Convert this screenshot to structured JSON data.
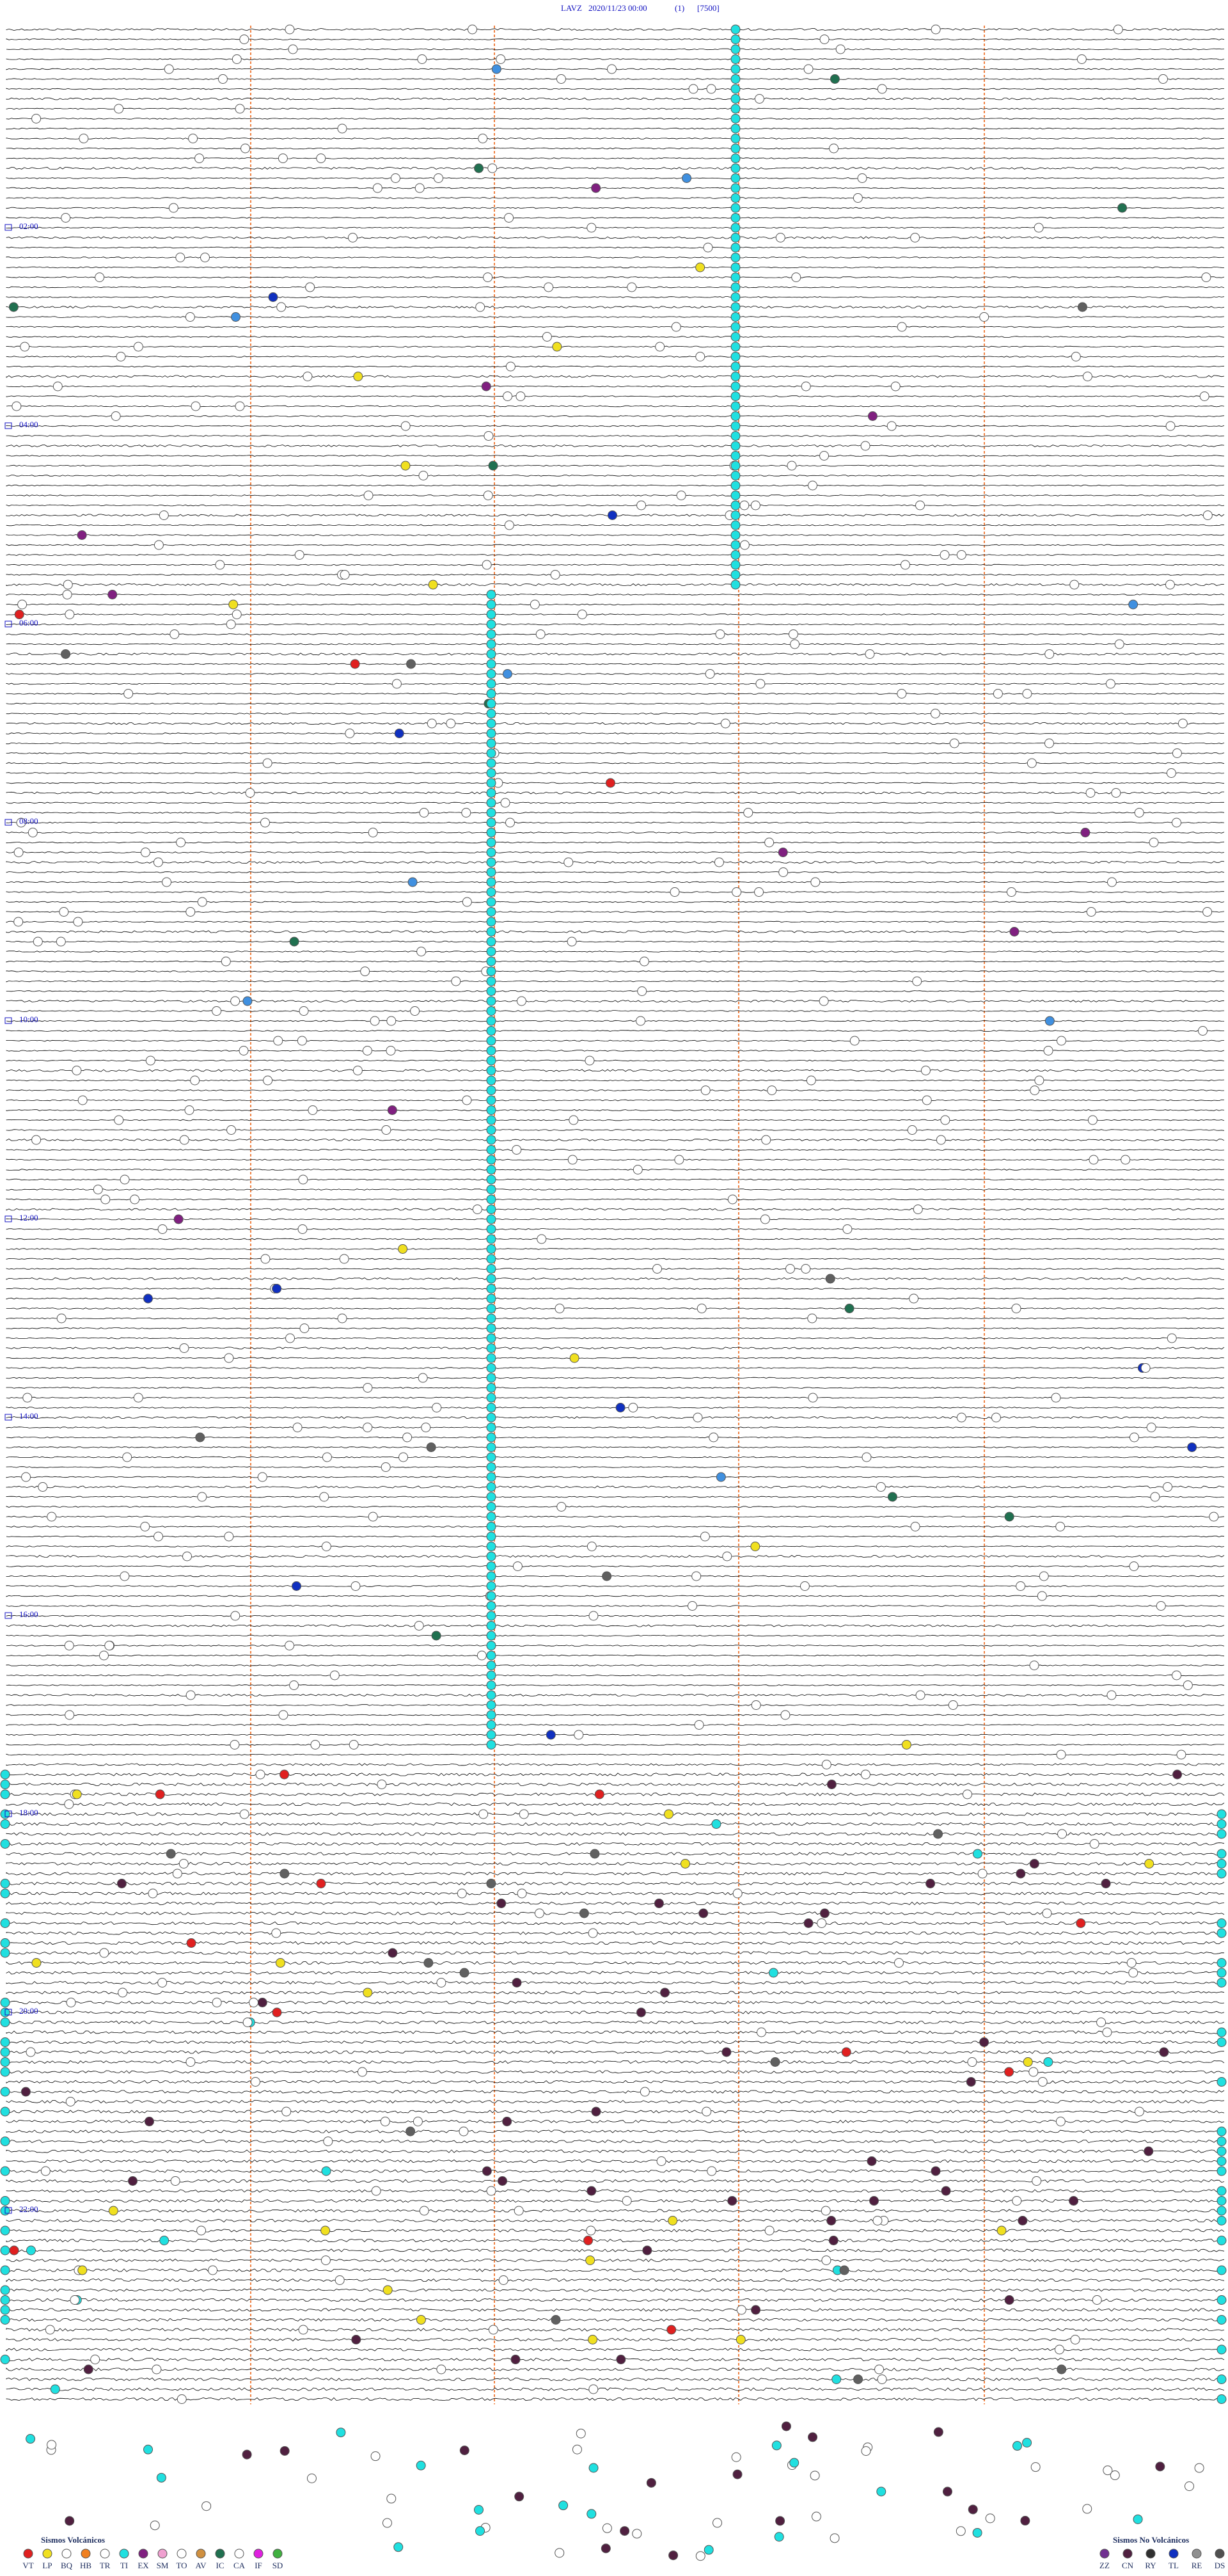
{
  "header": {
    "station": "LAVZ",
    "datetime": "2020/11/23 00:00",
    "channel": "(1)",
    "scale": "[7500]"
  },
  "hour_labels": [
    "02:00",
    "04:00",
    "06:00",
    "08:00",
    "10:00",
    "12:00",
    "14:00",
    "16:00",
    "18:00",
    "20:00",
    "22:00"
  ],
  "legend_volcanic": {
    "title": "Sismos Volcánicos",
    "items": [
      {
        "code": "VT",
        "color": "#e02020"
      },
      {
        "code": "LP",
        "color": "#f0e020"
      },
      {
        "code": "BQ",
        "color": "#ffffff"
      },
      {
        "code": "HB",
        "color": "#f08020"
      },
      {
        "code": "TR",
        "color": "#ffffff"
      },
      {
        "code": "TI",
        "color": "#20e0e0"
      },
      {
        "code": "EX",
        "color": "#802080"
      },
      {
        "code": "SM",
        "color": "#f0a0d0"
      },
      {
        "code": "TO",
        "color": "#ffffff"
      },
      {
        "code": "AV",
        "color": "#d09040"
      },
      {
        "code": "IC",
        "color": "#207050"
      },
      {
        "code": "CA",
        "color": "#ffffff"
      },
      {
        "code": "IF",
        "color": "#e020e0"
      },
      {
        "code": "SD",
        "color": "#40b040"
      }
    ]
  },
  "legend_non_volcanic": {
    "title": "Sismos No Volcánicos",
    "items": [
      {
        "code": "ZZ",
        "color": "#703090"
      },
      {
        "code": "CN",
        "color": "#502040"
      },
      {
        "code": "RY",
        "color": "#303030"
      },
      {
        "code": "TL",
        "color": "#1030c0"
      },
      {
        "code": "RE",
        "color": "#909090"
      },
      {
        "code": "DS",
        "color": "#505050"
      }
    ]
  }
}
